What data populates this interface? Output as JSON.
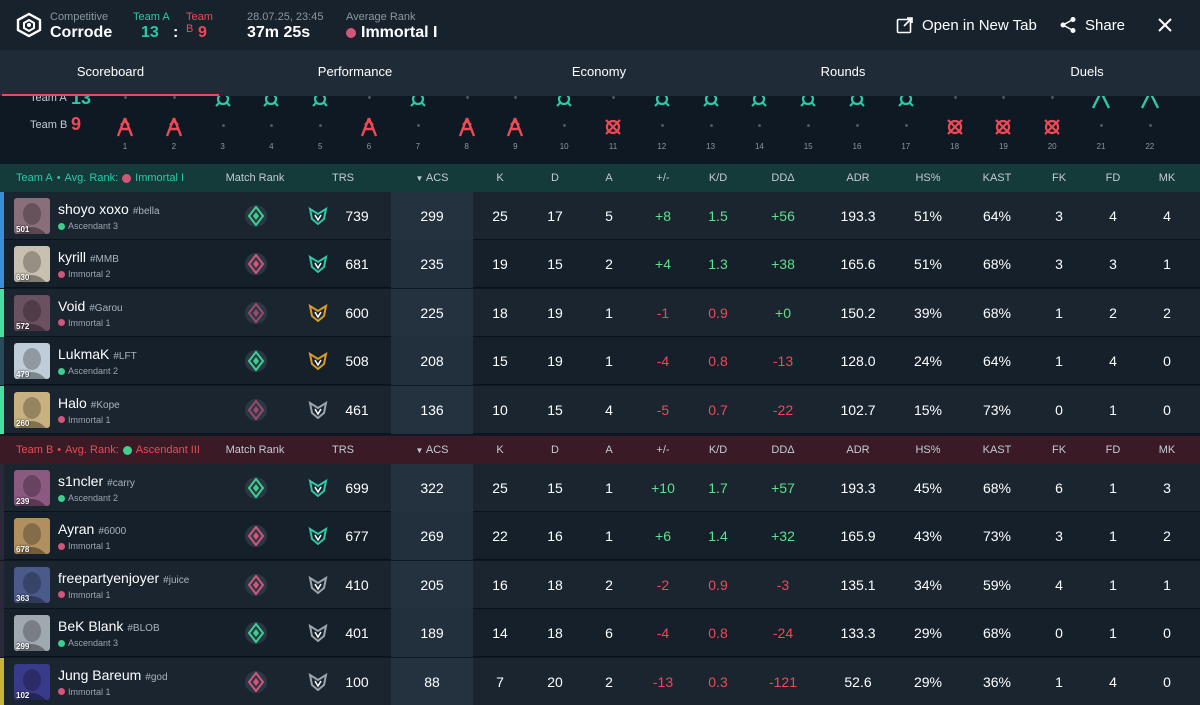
{
  "header": {
    "mode_label": "Competitive",
    "map": "Corrode",
    "team_a_label": "Team A",
    "team_b_label": "Team B",
    "team_a_score": "13",
    "team_b_score": "9",
    "score_sep": ":",
    "datetime": "28.07.25, 23:45",
    "duration": "37m 25s",
    "avg_rank_label": "Average Rank",
    "avg_rank": "Immortal I",
    "open_tab_label": "Open in New Tab",
    "share_label": "Share"
  },
  "tabs": [
    "Scoreboard",
    "Performance",
    "Economy",
    "Rounds",
    "Duels"
  ],
  "timeline": {
    "team_a_label": "Team A",
    "team_b_label": "Team B",
    "team_a_score": "13",
    "team_b_score": "9",
    "rounds": [
      "1",
      "2",
      "3",
      "4",
      "5",
      "6",
      "7",
      "8",
      "9",
      "10",
      "11",
      "12",
      "13",
      "14",
      "15",
      "16",
      "17",
      "18",
      "19",
      "20",
      "21",
      "22"
    ],
    "winners": [
      "B",
      "B",
      "A",
      "A",
      "A",
      "B",
      "A",
      "B",
      "B",
      "A",
      "B",
      "A",
      "A",
      "A",
      "A",
      "A",
      "A",
      "B",
      "B",
      "B",
      "A",
      "A"
    ]
  },
  "columns": {
    "match_rank": "Match Rank",
    "trs": "TRS",
    "acs": "ACS",
    "k": "K",
    "d": "D",
    "a": "A",
    "pm": "+/-",
    "kd": "K/D",
    "dd": "DDΔ",
    "adr": "ADR",
    "hs": "HS%",
    "kast": "KAST",
    "fk": "FK",
    "fd": "FD",
    "mk": "MK"
  },
  "team_a": {
    "name": "Team A",
    "bullet": "•",
    "avg_label": "Avg. Rank:",
    "avg_rank": "Immortal I",
    "players": [
      {
        "name": "shoyo xoxo",
        "tag": "#bella",
        "rank": "Ascendant 3",
        "level": "501",
        "trs": "739",
        "acs": "299",
        "k": "25",
        "d": "17",
        "a": "5",
        "pm": "+8",
        "kd": "1.5",
        "dd": "+56",
        "adr": "193.3",
        "hs": "51%",
        "kast": "64%",
        "fk": "3",
        "fd": "4",
        "mk": "4"
      },
      {
        "name": "kyrill",
        "tag": "#MMB",
        "rank": "Immortal 2",
        "level": "630",
        "trs": "681",
        "acs": "235",
        "k": "19",
        "d": "15",
        "a": "2",
        "pm": "+4",
        "kd": "1.3",
        "dd": "+38",
        "adr": "165.6",
        "hs": "51%",
        "kast": "68%",
        "fk": "3",
        "fd": "3",
        "mk": "1"
      },
      {
        "name": "Void",
        "tag": "#Garou",
        "rank": "Immortal 1",
        "level": "572",
        "trs": "600",
        "acs": "225",
        "k": "18",
        "d": "19",
        "a": "1",
        "pm": "-1",
        "kd": "0.9",
        "dd": "+0",
        "adr": "150.2",
        "hs": "39%",
        "kast": "68%",
        "fk": "1",
        "fd": "2",
        "mk": "2"
      },
      {
        "name": "LukmaK",
        "tag": "#LFT",
        "rank": "Ascendant 2",
        "level": "479",
        "trs": "508",
        "acs": "208",
        "k": "15",
        "d": "19",
        "a": "1",
        "pm": "-4",
        "kd": "0.8",
        "dd": "-13",
        "adr": "128.0",
        "hs": "24%",
        "kast": "64%",
        "fk": "1",
        "fd": "4",
        "mk": "0"
      },
      {
        "name": "Halo",
        "tag": "#Kope",
        "rank": "Immortal 1",
        "level": "260",
        "trs": "461",
        "acs": "136",
        "k": "10",
        "d": "15",
        "a": "4",
        "pm": "-5",
        "kd": "0.7",
        "dd": "-22",
        "adr": "102.7",
        "hs": "15%",
        "kast": "73%",
        "fk": "0",
        "fd": "1",
        "mk": "0"
      }
    ]
  },
  "team_b": {
    "name": "Team B",
    "bullet": "•",
    "avg_label": "Avg. Rank:",
    "avg_rank": "Ascendant III",
    "players": [
      {
        "name": "s1ncler",
        "tag": "#carry",
        "rank": "Ascendant 2",
        "level": "239",
        "trs": "699",
        "acs": "322",
        "k": "25",
        "d": "15",
        "a": "1",
        "pm": "+10",
        "kd": "1.7",
        "dd": "+57",
        "adr": "193.3",
        "hs": "45%",
        "kast": "68%",
        "fk": "6",
        "fd": "1",
        "mk": "3"
      },
      {
        "name": "Ayran",
        "tag": "#6000",
        "rank": "Immortal 1",
        "level": "678",
        "trs": "677",
        "acs": "269",
        "k": "22",
        "d": "16",
        "a": "1",
        "pm": "+6",
        "kd": "1.4",
        "dd": "+32",
        "adr": "165.9",
        "hs": "43%",
        "kast": "73%",
        "fk": "3",
        "fd": "1",
        "mk": "2"
      },
      {
        "name": "freepartyenjoyer",
        "tag": "#juice",
        "rank": "Immortal 1",
        "level": "363",
        "trs": "410",
        "acs": "205",
        "k": "16",
        "d": "18",
        "a": "2",
        "pm": "-2",
        "kd": "0.9",
        "dd": "-3",
        "adr": "135.1",
        "hs": "34%",
        "kast": "59%",
        "fk": "4",
        "fd": "1",
        "mk": "1"
      },
      {
        "name": "BeK Blank",
        "tag": "#BLOB",
        "rank": "Ascendant 3",
        "level": "299",
        "trs": "401",
        "acs": "189",
        "k": "14",
        "d": "18",
        "a": "6",
        "pm": "-4",
        "kd": "0.8",
        "dd": "-24",
        "adr": "133.3",
        "hs": "29%",
        "kast": "68%",
        "fk": "0",
        "fd": "1",
        "mk": "0"
      },
      {
        "name": "Jung Bareum",
        "tag": "#god",
        "rank": "Immortal 1",
        "level": "102",
        "trs": "100",
        "acs": "88",
        "k": "7",
        "d": "20",
        "a": "2",
        "pm": "-13",
        "kd": "0.3",
        "dd": "-121",
        "adr": "52.6",
        "hs": "29%",
        "kast": "36%",
        "fk": "1",
        "fd": "4",
        "mk": "0"
      }
    ]
  },
  "colors": {
    "team_a": "#2fc8a6",
    "team_b": "#ef4957",
    "positive": "#5fe089",
    "negative": "#ef4957",
    "ascendant": "#3ecf8e",
    "immortal": "#d4557a"
  }
}
